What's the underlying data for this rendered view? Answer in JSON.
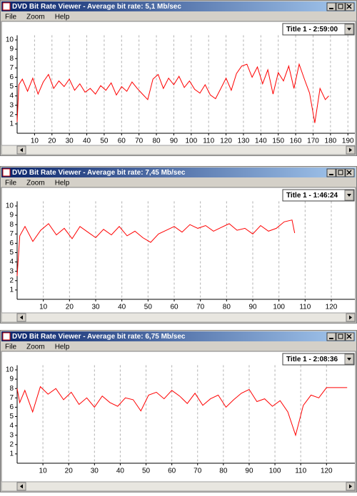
{
  "windows": [
    {
      "title": "DVD Bit Rate Viewer - Average bit rate: 5,1 Mb/sec",
      "menu": [
        "File",
        "Zoom",
        "Help"
      ],
      "dropdown": "Title 1 - 2:59:00",
      "chart": {
        "type": "line",
        "color": "#ff0000",
        "xlim": [
          0,
          194
        ],
        "ylim": [
          0,
          10.5
        ],
        "xticks": [
          10,
          20,
          30,
          40,
          50,
          60,
          70,
          80,
          90,
          100,
          110,
          120,
          130,
          140,
          150,
          160,
          170,
          180,
          190
        ],
        "yticks": [
          1,
          2,
          3,
          4,
          5,
          6,
          7,
          8,
          9,
          10
        ],
        "x": [
          0,
          1,
          3,
          6,
          9,
          12,
          15,
          18,
          21,
          24,
          27,
          30,
          33,
          36,
          39,
          42,
          45,
          48,
          51,
          54,
          57,
          60,
          63,
          66,
          69,
          72,
          75,
          78,
          81,
          84,
          87,
          90,
          93,
          96,
          99,
          102,
          105,
          108,
          111,
          114,
          117,
          120,
          123,
          126,
          129,
          132,
          135,
          138,
          141,
          144,
          147,
          150,
          153,
          156,
          159,
          162,
          165,
          168,
          171,
          174,
          177,
          179
        ],
        "values": [
          1.2,
          5.2,
          5.8,
          4.5,
          5.9,
          4.2,
          5.5,
          6.3,
          4.8,
          5.6,
          5.0,
          5.8,
          4.6,
          5.3,
          4.4,
          4.8,
          4.2,
          5.1,
          4.6,
          5.4,
          4.1,
          5.0,
          4.5,
          5.5,
          4.8,
          4.2,
          3.6,
          5.8,
          6.3,
          4.8,
          5.9,
          5.2,
          6.1,
          4.9,
          5.6,
          4.7,
          4.3,
          5.2,
          4.1,
          3.7,
          4.8,
          5.9,
          4.6,
          6.4,
          7.2,
          7.4,
          6.0,
          7.1,
          5.3,
          6.8,
          4.2,
          6.5,
          5.6,
          7.2,
          4.8,
          7.4,
          5.8,
          4.3,
          1.1,
          4.8,
          3.6,
          4.0
        ]
      }
    },
    {
      "title": "DVD Bit Rate Viewer - Average bit rate: 7,45 Mb/sec",
      "menu": [
        "File",
        "Zoom",
        "Help"
      ],
      "dropdown": "Title 1 - 1:46:24",
      "chart": {
        "type": "line",
        "color": "#ff0000",
        "xlim": [
          0,
          129
        ],
        "ylim": [
          0,
          10.5
        ],
        "xticks": [
          10,
          20,
          30,
          40,
          50,
          60,
          70,
          80,
          90,
          100,
          110,
          120
        ],
        "yticks": [
          1,
          2,
          3,
          4,
          5,
          6,
          7,
          8,
          9,
          10
        ],
        "x": [
          0,
          1,
          3,
          6,
          9,
          12,
          15,
          18,
          21,
          24,
          27,
          30,
          33,
          36,
          39,
          42,
          45,
          48,
          51,
          54,
          57,
          60,
          63,
          66,
          69,
          72,
          75,
          78,
          81,
          84,
          87,
          90,
          93,
          96,
          99,
          102,
          105,
          106
        ],
        "values": [
          2.5,
          6.8,
          7.8,
          6.2,
          7.4,
          8.1,
          6.9,
          7.6,
          6.5,
          7.8,
          7.2,
          6.6,
          7.5,
          6.9,
          7.8,
          6.8,
          7.3,
          6.6,
          6.1,
          7.0,
          7.4,
          7.8,
          7.2,
          8.0,
          7.6,
          7.9,
          7.3,
          7.7,
          8.1,
          7.4,
          7.6,
          7.0,
          7.9,
          7.3,
          7.6,
          8.3,
          8.5,
          7.1
        ]
      }
    },
    {
      "title": "DVD Bit Rate Viewer - Average bit rate: 6,75 Mb/sec",
      "menu": [
        "File",
        "Zoom",
        "Help"
      ],
      "dropdown": "Title 1 - 2:08:36",
      "chart": {
        "type": "line",
        "color": "#ff0000",
        "xlim": [
          0,
          131
        ],
        "ylim": [
          0,
          10.5
        ],
        "xticks": [
          10,
          20,
          30,
          40,
          50,
          60,
          70,
          80,
          90,
          100,
          110,
          120
        ],
        "yticks": [
          1,
          2,
          3,
          4,
          5,
          6,
          7,
          8,
          9,
          10
        ],
        "x": [
          0,
          1,
          3,
          6,
          9,
          12,
          15,
          18,
          21,
          24,
          27,
          30,
          33,
          36,
          39,
          42,
          45,
          48,
          51,
          54,
          57,
          60,
          63,
          66,
          69,
          72,
          75,
          78,
          81,
          84,
          87,
          90,
          93,
          96,
          99,
          102,
          105,
          108,
          111,
          114,
          117,
          120,
          123,
          126,
          128
        ],
        "values": [
          8.0,
          6.5,
          7.8,
          5.5,
          8.2,
          7.4,
          8.0,
          6.8,
          7.6,
          6.3,
          7.0,
          6.0,
          7.2,
          6.5,
          6.1,
          7.0,
          6.8,
          5.6,
          7.3,
          7.6,
          6.9,
          7.8,
          7.2,
          6.4,
          7.5,
          6.2,
          6.9,
          7.3,
          6.0,
          6.8,
          7.5,
          7.9,
          6.6,
          6.9,
          6.1,
          6.7,
          5.5,
          3.0,
          6.2,
          7.3,
          7.0,
          8.1,
          8.1,
          8.1,
          8.1
        ]
      }
    }
  ]
}
